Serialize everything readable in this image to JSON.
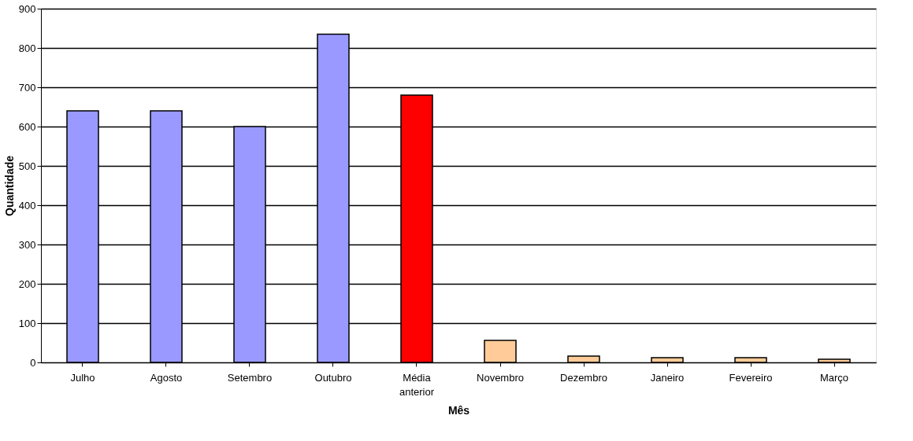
{
  "chart_data": {
    "type": "bar",
    "xlabel": "Mês",
    "ylabel": "Quantidade",
    "categories": [
      "Julho",
      "Agosto",
      "Setembro",
      "Outubro",
      "Média anterior",
      "Novembro",
      "Dezembro",
      "Janeiro",
      "Fevereiro",
      "Março"
    ],
    "values": [
      640,
      640,
      600,
      835,
      680,
      56,
      16,
      12,
      12,
      8
    ],
    "colors": [
      "#9999ff",
      "#9999ff",
      "#9999ff",
      "#9999ff",
      "#ff0000",
      "#ffcc99",
      "#ffcc99",
      "#ffcc99",
      "#ffcc99",
      "#ffcc99"
    ],
    "ylim": [
      0,
      900
    ],
    "yticks": [
      0,
      100,
      200,
      300,
      400,
      500,
      600,
      700,
      800,
      900
    ],
    "grid": "y",
    "legend": false
  }
}
